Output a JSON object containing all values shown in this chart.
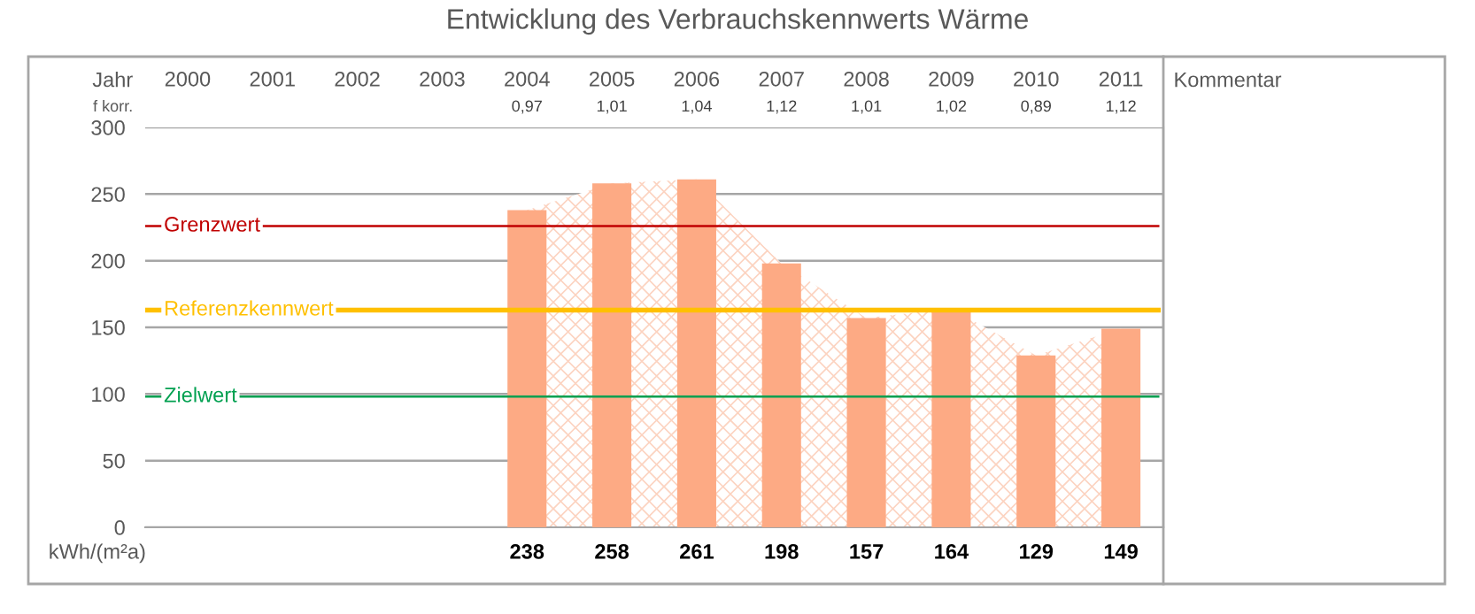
{
  "chart_data": {
    "type": "bar",
    "title": "Entwicklung des Verbrauchskennwerts Wärme",
    "categories": [
      "2000",
      "2001",
      "2002",
      "2003",
      "2004",
      "2005",
      "2006",
      "2007",
      "2008",
      "2009",
      "2010",
      "2011"
    ],
    "series": [
      {
        "color": "#fdaa84",
        "values": [
          null,
          null,
          null,
          null,
          238,
          258,
          261,
          198,
          157,
          164,
          129,
          149
        ],
        "value_labels": [
          null,
          null,
          null,
          null,
          "238",
          "258",
          "261",
          "198",
          "157",
          "164",
          "129",
          "149"
        ]
      },
      {
        "type": "area",
        "color": "#fcd3c0",
        "values": [
          null,
          null,
          null,
          null,
          238,
          258,
          261,
          198,
          157,
          164,
          129,
          149
        ]
      }
    ],
    "ylim": [
      0,
      300
    ],
    "yticks": [
      0,
      50,
      100,
      150,
      200,
      250,
      300
    ],
    "grid": "y",
    "ref_lines": [
      {
        "axis": "y",
        "value": 226,
        "label": "Grenzwert",
        "color": "#c00000"
      },
      {
        "axis": "y",
        "value": 163,
        "label": "Referenzkennwert",
        "color": "#ffc000"
      },
      {
        "axis": "y",
        "value": 98,
        "label": "Zielwert",
        "color": "#00a050"
      }
    ],
    "annotations": [
      "Jahr",
      "f korr.",
      "kWh/(m²a)",
      "Kommentar",
      "0,97",
      "1,01",
      "1,04",
      "1,12",
      "1,01",
      "1,02",
      "0,89",
      "1,12"
    ]
  }
}
